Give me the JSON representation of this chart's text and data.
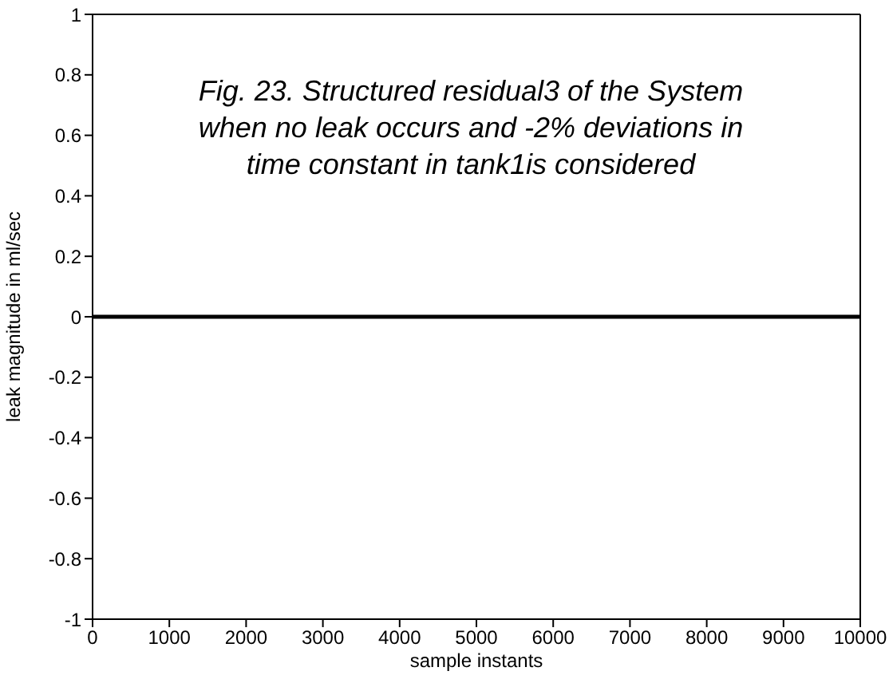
{
  "chart_data": {
    "type": "line",
    "xlabel": "sample instants",
    "ylabel": "leak magnitude in ml/sec",
    "annotations": [
      "Fig. 23. Structured residual3 of the System when no leak occurs and -2% deviations in time constant in tank1is considered"
    ],
    "x": [
      0,
      10000
    ],
    "series": [
      {
        "color": "#000000",
        "values": [
          0,
          0
        ]
      }
    ],
    "xlim": [
      0,
      10000
    ],
    "xticks": [
      0,
      1000,
      2000,
      3000,
      4000,
      5000,
      6000,
      7000,
      8000,
      9000,
      10000
    ],
    "ylim": [
      -1,
      1
    ],
    "yticks": [
      -1,
      -0.8,
      -0.6,
      -0.4,
      -0.2,
      0,
      0.2,
      0.4,
      0.6,
      0.8,
      1
    ],
    "grid": false,
    "legend": false,
    "marker": "none",
    "line_style": "solid"
  }
}
